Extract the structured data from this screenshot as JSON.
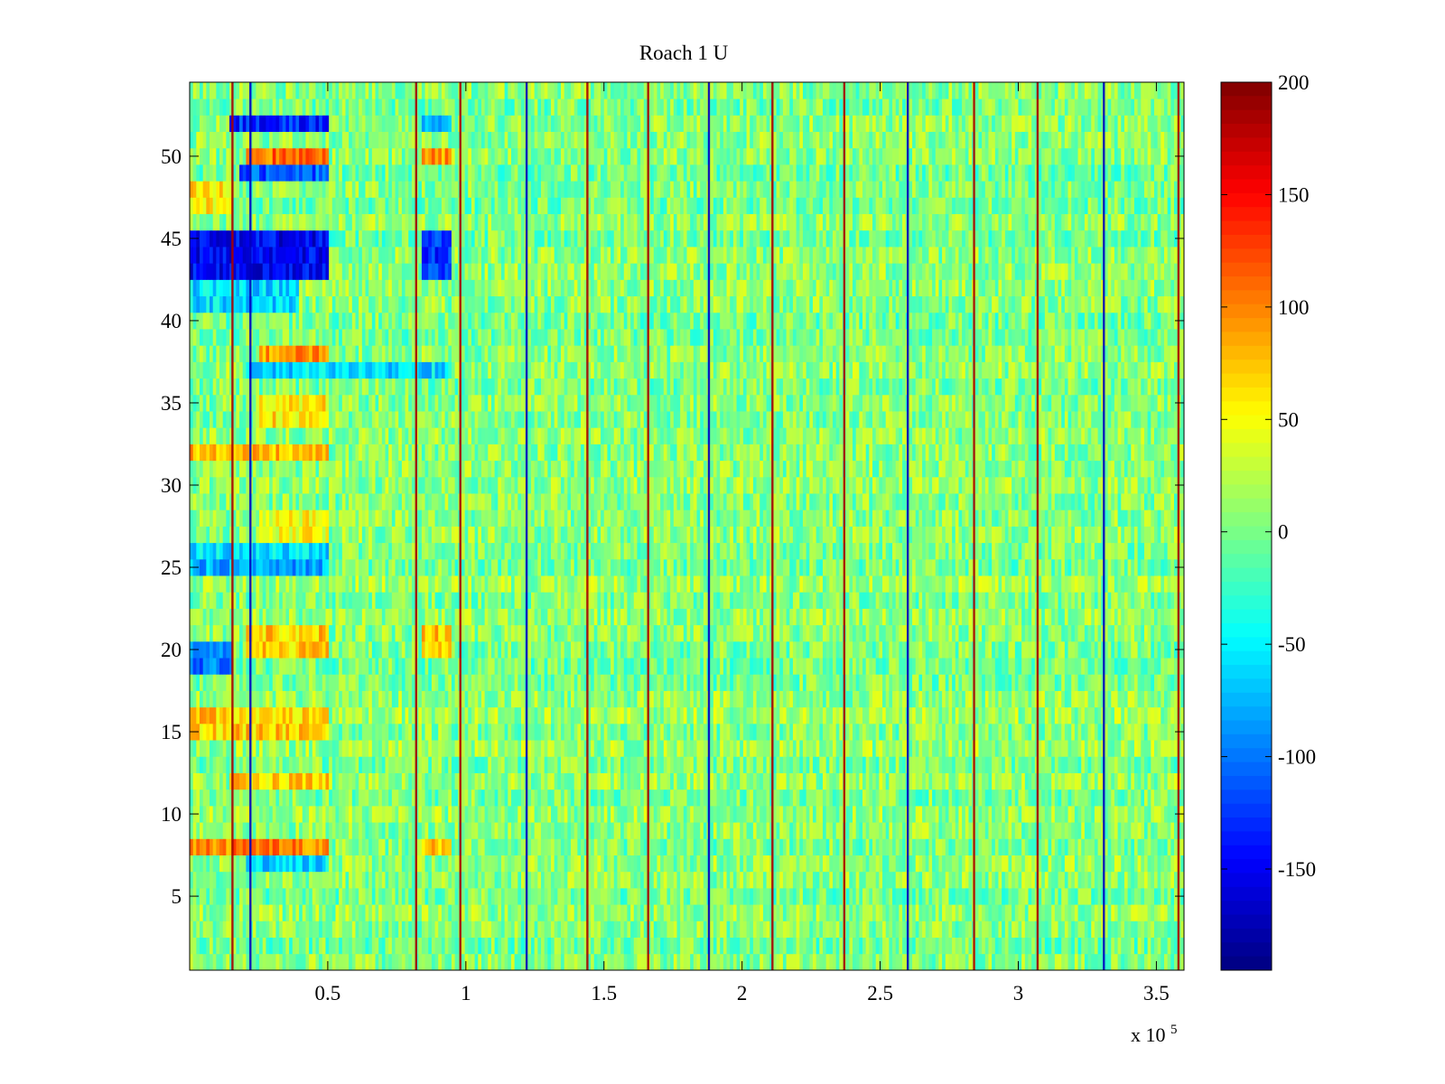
{
  "chart_data": {
    "type": "heatmap",
    "title": "Roach 1 U",
    "xlabel": "",
    "ylabel": "",
    "x_multiplier_label": {
      "base": "x 10",
      "exponent": "5"
    },
    "xlim": [
      0,
      360000
    ],
    "ylim": [
      0.5,
      54.5
    ],
    "x_ticks": [
      50000,
      100000,
      150000,
      200000,
      250000,
      300000,
      350000
    ],
    "x_tick_labels": [
      "0.5",
      "1",
      "1.5",
      "2",
      "2.5",
      "3",
      "3.5"
    ],
    "y_ticks": [
      5,
      10,
      15,
      20,
      25,
      30,
      35,
      40,
      45,
      50
    ],
    "y_tick_labels": [
      "5",
      "10",
      "15",
      "20",
      "25",
      "30",
      "35",
      "40",
      "45",
      "50"
    ],
    "n_rows": 54,
    "colormap": "jet",
    "clim": [
      -195,
      200
    ],
    "colorbar": {
      "ticks": [
        200,
        150,
        100,
        50,
        0,
        -50,
        -100,
        -150
      ],
      "tick_labels": [
        "200",
        "150",
        "100",
        "50",
        "0",
        "-50",
        "-100",
        "-150"
      ]
    },
    "baseline_value": 5,
    "vertical_event_lines_x": [
      15500,
      22000,
      82000,
      98000,
      122000,
      144000,
      166000,
      188000,
      211000,
      237000,
      260000,
      284000,
      307000,
      331000,
      358000
    ],
    "row_bands": [
      {
        "rows": [
          43,
          44,
          45
        ],
        "x_range": [
          0,
          50000
        ],
        "value": -150
      },
      {
        "rows": [
          43,
          44,
          45
        ],
        "x_range": [
          84000,
          95000
        ],
        "value": -130
      },
      {
        "rows": [
          52
        ],
        "x_range": [
          15000,
          50000
        ],
        "value": -130
      },
      {
        "rows": [
          52
        ],
        "x_range": [
          84000,
          95000
        ],
        "value": -90
      },
      {
        "rows": [
          50
        ],
        "x_range": [
          20000,
          50000
        ],
        "value": 110
      },
      {
        "rows": [
          50
        ],
        "x_range": [
          84000,
          95000
        ],
        "value": 90
      },
      {
        "rows": [
          49
        ],
        "x_range": [
          18000,
          50000
        ],
        "value": -110
      },
      {
        "rows": [
          47,
          48
        ],
        "x_range": [
          0,
          15000
        ],
        "value": 60
      },
      {
        "rows": [
          41,
          42
        ],
        "x_range": [
          0,
          40000
        ],
        "value": -60
      },
      {
        "rows": [
          38
        ],
        "x_range": [
          25000,
          50000
        ],
        "value": 90
      },
      {
        "rows": [
          37
        ],
        "x_range": [
          20000,
          95000
        ],
        "value": -60
      },
      {
        "rows": [
          34,
          35
        ],
        "x_range": [
          25000,
          50000
        ],
        "value": 60
      },
      {
        "rows": [
          32
        ],
        "x_range": [
          0,
          50000
        ],
        "value": 80
      },
      {
        "rows": [
          27,
          28
        ],
        "x_range": [
          25000,
          50000
        ],
        "value": 50
      },
      {
        "rows": [
          26
        ],
        "x_range": [
          0,
          50000
        ],
        "value": -60
      },
      {
        "rows": [
          25
        ],
        "x_range": [
          0,
          50000
        ],
        "value": -80
      },
      {
        "rows": [
          20,
          21
        ],
        "x_range": [
          20000,
          50000
        ],
        "value": 70
      },
      {
        "rows": [
          20,
          21
        ],
        "x_range": [
          84000,
          95000
        ],
        "value": 70
      },
      {
        "rows": [
          19,
          20
        ],
        "x_range": [
          0,
          15000
        ],
        "value": -100
      },
      {
        "rows": [
          15,
          16
        ],
        "x_range": [
          0,
          50000
        ],
        "value": 70
      },
      {
        "rows": [
          12
        ],
        "x_range": [
          15000,
          50000
        ],
        "value": 70
      },
      {
        "rows": [
          8
        ],
        "x_range": [
          0,
          50000
        ],
        "value": 100
      },
      {
        "rows": [
          8
        ],
        "x_range": [
          84000,
          95000
        ],
        "value": 80
      },
      {
        "rows": [
          7
        ],
        "x_range": [
          20000,
          50000
        ],
        "value": -60
      }
    ]
  }
}
